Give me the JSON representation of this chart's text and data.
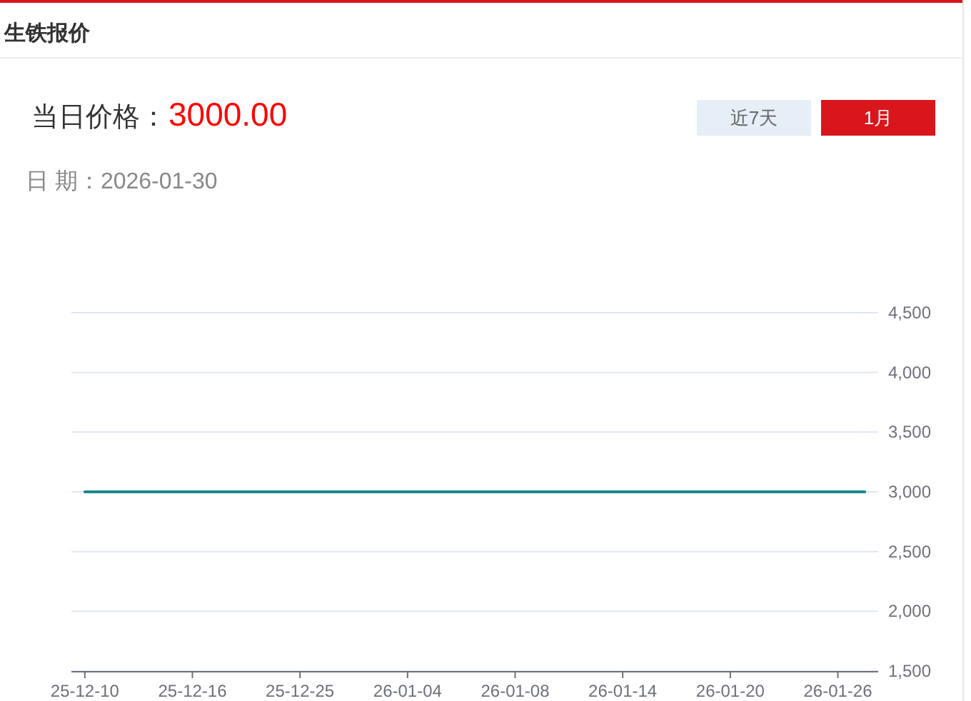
{
  "chart_data": {
    "type": "line",
    "title": "生铁报价",
    "annotations": [
      "当日价格：",
      "3000.00",
      "日 期：2026-01-30",
      "近7天",
      "1月"
    ],
    "categories": [
      "25-12-10",
      null,
      null,
      null,
      "25-12-16",
      null,
      null,
      null,
      "25-12-25",
      null,
      null,
      null,
      "26-01-04",
      null,
      null,
      null,
      "26-01-08",
      null,
      null,
      null,
      "26-01-14",
      null,
      null,
      null,
      "26-01-20",
      null,
      null,
      null,
      "26-01-26",
      null
    ],
    "series": [
      {
        "color": "#1a8a8f",
        "values": [
          3000,
          3000,
          3000,
          3000,
          3000,
          3000,
          3000,
          3000,
          3000,
          3000,
          3000,
          3000,
          3000,
          3000,
          3000,
          3000,
          3000,
          3000,
          3000,
          3000,
          3000,
          3000,
          3000,
          3000,
          3000,
          3000,
          3000,
          3000,
          3000,
          3000
        ]
      }
    ],
    "ylim": [
      1500,
      4500
    ],
    "yticks": [
      {
        "value": 1500,
        "label": "1,500"
      },
      {
        "value": 2000,
        "label": "2,000"
      },
      {
        "value": 2500,
        "label": "2,500"
      },
      {
        "value": 3000,
        "label": "3,000"
      },
      {
        "value": 3500,
        "label": "3,500"
      },
      {
        "value": 4000,
        "label": "4,000"
      },
      {
        "value": 4500,
        "label": "4,500"
      }
    ],
    "grid": "y",
    "marker": "none",
    "line_style": "solid"
  }
}
